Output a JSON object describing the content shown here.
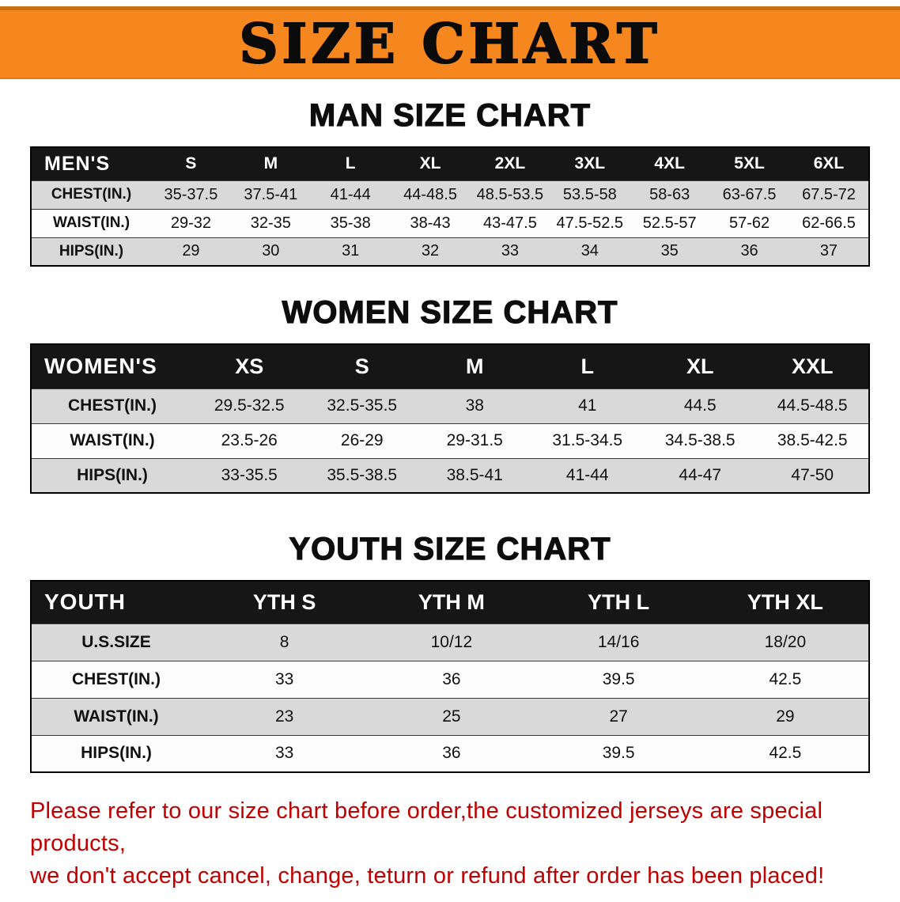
{
  "banner": {
    "title": "SIZE CHART"
  },
  "men": {
    "heading": "MAN SIZE CHART",
    "table": {
      "header": [
        "MEN'S",
        "S",
        "M",
        "L",
        "XL",
        "2XL",
        "3XL",
        "4XL",
        "5XL",
        "6XL"
      ],
      "rows": [
        [
          "CHEST(IN.)",
          "35-37.5",
          "37.5-41",
          "41-44",
          "44-48.5",
          "48.5-53.5",
          "53.5-58",
          "58-63",
          "63-67.5",
          "67.5-72"
        ],
        [
          "WAIST(IN.)",
          "29-32",
          "32-35",
          "35-38",
          "38-43",
          "43-47.5",
          "47.5-52.5",
          "52.5-57",
          "57-62",
          "62-66.5"
        ],
        [
          "HIPS(IN.)",
          "29",
          "30",
          "31",
          "32",
          "33",
          "34",
          "35",
          "36",
          "37"
        ]
      ]
    }
  },
  "women": {
    "heading": "WOMEN SIZE CHART",
    "table": {
      "header": [
        "WOMEN'S",
        "XS",
        "S",
        "M",
        "L",
        "XL",
        "XXL"
      ],
      "rows": [
        [
          "CHEST(IN.)",
          "29.5-32.5",
          "32.5-35.5",
          "38",
          "41",
          "44.5",
          "44.5-48.5"
        ],
        [
          "WAIST(IN.)",
          "23.5-26",
          "26-29",
          "29-31.5",
          "31.5-34.5",
          "34.5-38.5",
          "38.5-42.5"
        ],
        [
          "HIPS(IN.)",
          "33-35.5",
          "35.5-38.5",
          "38.5-41",
          "41-44",
          "44-47",
          "47-50"
        ]
      ]
    }
  },
  "youth": {
    "heading": "YOUTH SIZE CHART",
    "table": {
      "header": [
        "YOUTH",
        "YTH S",
        "YTH M",
        "YTH L",
        "YTH XL"
      ],
      "rows": [
        [
          "U.S.SIZE",
          "8",
          "10/12",
          "14/16",
          "18/20"
        ],
        [
          "CHEST(IN.)",
          "33",
          "36",
          "39.5",
          "42.5"
        ],
        [
          "WAIST(IN.)",
          "23",
          "25",
          "27",
          "29"
        ],
        [
          "HIPS(IN.)",
          "33",
          "36",
          "39.5",
          "42.5"
        ]
      ]
    }
  },
  "disclaimer": {
    "line1": "Please refer to our size chart before order,the customized jerseys are special products,",
    "line2": "we don't accept cancel, change, teturn or refund after order has been placed!",
    "color": "#c00000"
  },
  "colors": {
    "banner_bg": "#f6871e",
    "header_row_bg": "#161616",
    "row_gray": "#d9d9d9",
    "disclaimer_red": "#c00000"
  }
}
